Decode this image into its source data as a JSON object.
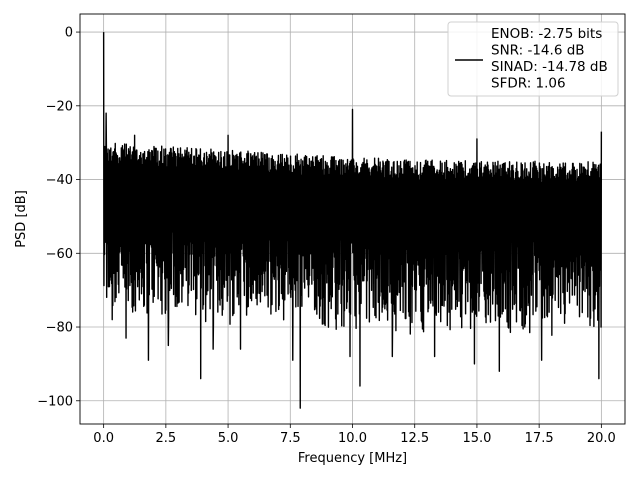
{
  "chart_data": {
    "type": "line",
    "xlabel": "Frequency [MHz]",
    "ylabel": "PSD [dB]",
    "xlim": [
      -0.95,
      20.95
    ],
    "ylim": [
      -106.3,
      4.9
    ],
    "x_ticks": [
      0.0,
      2.5,
      5.0,
      7.5,
      10.0,
      12.5,
      15.0,
      17.5,
      20.0
    ],
    "x_tick_labels": [
      "0.0",
      "2.5",
      "5.0",
      "7.5",
      "10.0",
      "12.5",
      "15.0",
      "17.5",
      "20.0"
    ],
    "y_ticks": [
      0,
      -20,
      -40,
      -60,
      -80,
      -100
    ],
    "y_tick_labels": [
      "0",
      "−20",
      "−40",
      "−60",
      "−80",
      "−100"
    ],
    "grid": true,
    "legend_position": "top-right",
    "series": [
      {
        "name": "ENOB: -2.75 bits\nSNR: -14.6 dB\nSINAD: -14.78 dB\nSFDR: 1.06",
        "color": "#000000",
        "noise_band_top": [
          [
            0.0,
            -30
          ],
          [
            5.0,
            -32
          ],
          [
            10.0,
            -34
          ],
          [
            15.0,
            -35
          ],
          [
            20.0,
            -35
          ]
        ],
        "noise_band_typical_low": [
          [
            0.0,
            -72
          ],
          [
            5.0,
            -74
          ],
          [
            10.0,
            -76
          ],
          [
            15.0,
            -77
          ],
          [
            20.0,
            -77
          ]
        ],
        "peaks": [
          {
            "x": 0.0,
            "y": 0
          },
          {
            "x": 0.1,
            "y": -22
          },
          {
            "x": 1.25,
            "y": -28
          },
          {
            "x": 5.0,
            "y": -28
          },
          {
            "x": 10.0,
            "y": -21
          },
          {
            "x": 15.0,
            "y": -29
          },
          {
            "x": 20.0,
            "y": -27
          }
        ],
        "dips": [
          {
            "x": 0.35,
            "y": -78
          },
          {
            "x": 0.9,
            "y": -83
          },
          {
            "x": 1.8,
            "y": -89
          },
          {
            "x": 2.6,
            "y": -85
          },
          {
            "x": 3.9,
            "y": -94
          },
          {
            "x": 4.4,
            "y": -86
          },
          {
            "x": 5.5,
            "y": -86
          },
          {
            "x": 7.6,
            "y": -89
          },
          {
            "x": 7.9,
            "y": -102
          },
          {
            "x": 9.9,
            "y": -88
          },
          {
            "x": 10.3,
            "y": -96
          },
          {
            "x": 11.6,
            "y": -88
          },
          {
            "x": 13.3,
            "y": -88
          },
          {
            "x": 14.9,
            "y": -90
          },
          {
            "x": 15.9,
            "y": -92
          },
          {
            "x": 17.6,
            "y": -89
          },
          {
            "x": 19.9,
            "y": -94
          }
        ]
      }
    ]
  }
}
